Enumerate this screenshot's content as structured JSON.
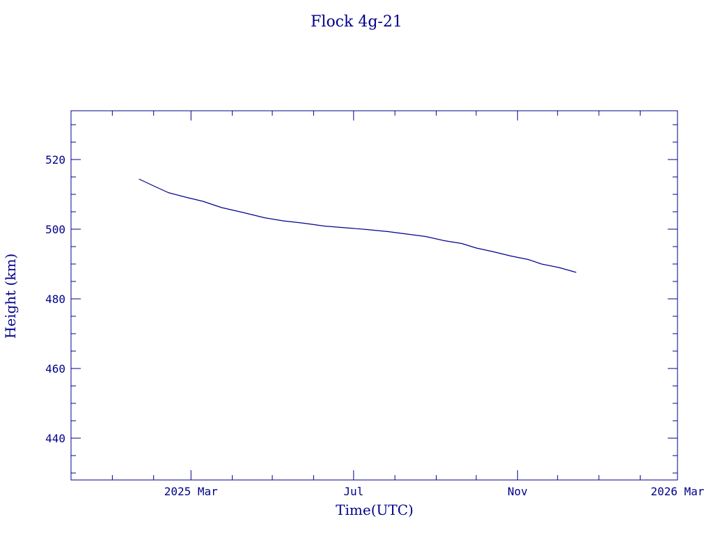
{
  "colors": {
    "ink": "#00008b",
    "background": "#ffffff"
  },
  "chart_data": {
    "type": "line",
    "title": "Flock 4g-21",
    "xlabel": "Time(UTC)",
    "ylabel": "Height (km)",
    "x_axis": {
      "kind": "date",
      "range": [
        "2024-12-01",
        "2026-03-01"
      ],
      "major_ticks": [
        {
          "date": "2025-03-01",
          "label": "2025 Mar"
        },
        {
          "date": "2025-07-01",
          "label": "Jul"
        },
        {
          "date": "2025-11-01",
          "label": "Nov"
        },
        {
          "date": "2026-03-01",
          "label": "2026 Mar"
        }
      ],
      "minor_ticks": [
        "2025-01-01",
        "2025-02-01",
        "2025-04-01",
        "2025-05-01",
        "2025-06-01",
        "2025-08-01",
        "2025-09-01",
        "2025-10-01",
        "2025-12-01",
        "2026-01-01",
        "2026-02-01"
      ]
    },
    "y_axis": {
      "range": [
        428,
        534
      ],
      "major_ticks": [
        440,
        460,
        480,
        500,
        520
      ],
      "tick_labels": [
        "440",
        "460",
        "480",
        "500",
        "520"
      ],
      "minor_ticks": [
        430,
        435,
        445,
        450,
        455,
        465,
        470,
        475,
        485,
        490,
        495,
        505,
        510,
        515,
        525,
        530
      ]
    },
    "grid": false,
    "legend": "none",
    "series": [
      {
        "points": [
          {
            "x": "2025-01-21",
            "y": 514.4
          },
          {
            "x": "2025-01-31",
            "y": 512.6
          },
          {
            "x": "2025-02-12",
            "y": 510.5
          },
          {
            "x": "2025-02-26",
            "y": 509.1
          },
          {
            "x": "2025-03-10",
            "y": 508.0
          },
          {
            "x": "2025-03-24",
            "y": 506.2
          },
          {
            "x": "2025-04-09",
            "y": 504.8
          },
          {
            "x": "2025-04-25",
            "y": 503.3
          },
          {
            "x": "2025-05-09",
            "y": 502.4
          },
          {
            "x": "2025-05-25",
            "y": 501.7
          },
          {
            "x": "2025-06-09",
            "y": 500.9
          },
          {
            "x": "2025-06-25",
            "y": 500.4
          },
          {
            "x": "2025-07-11",
            "y": 499.9
          },
          {
            "x": "2025-07-27",
            "y": 499.3
          },
          {
            "x": "2025-08-10",
            "y": 498.6
          },
          {
            "x": "2025-08-24",
            "y": 497.9
          },
          {
            "x": "2025-09-07",
            "y": 496.7
          },
          {
            "x": "2025-09-20",
            "y": 495.9
          },
          {
            "x": "2025-10-01",
            "y": 494.6
          },
          {
            "x": "2025-10-13",
            "y": 493.6
          },
          {
            "x": "2025-10-27",
            "y": 492.3
          },
          {
            "x": "2025-11-09",
            "y": 491.3
          },
          {
            "x": "2025-11-19",
            "y": 490.0
          },
          {
            "x": "2025-12-02",
            "y": 489.0
          },
          {
            "x": "2025-12-15",
            "y": 487.6
          }
        ]
      }
    ]
  }
}
